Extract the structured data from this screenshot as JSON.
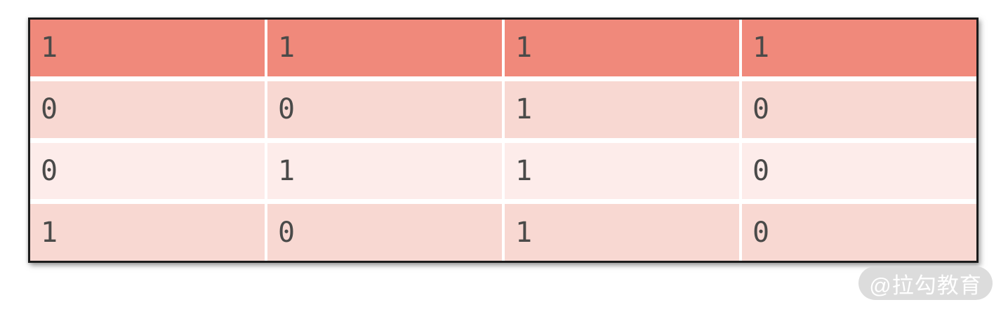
{
  "chart_data": {
    "type": "table",
    "header_row": [
      "1",
      "1",
      "1",
      "1"
    ],
    "rows": [
      [
        "0",
        "0",
        "1",
        "0"
      ],
      [
        "0",
        "1",
        "1",
        "0"
      ],
      [
        "1",
        "0",
        "1",
        "0"
      ]
    ],
    "matrix": [
      [
        1,
        1,
        1,
        1
      ],
      [
        0,
        0,
        1,
        0
      ],
      [
        0,
        1,
        1,
        0
      ],
      [
        1,
        0,
        1,
        0
      ]
    ],
    "title": "",
    "legend": "none",
    "grid": "white gridlines between cells"
  },
  "watermark": {
    "label": "@拉勾教育"
  },
  "colors": {
    "header_bg": "#f0897b",
    "row_a_bg": "#f8d8d2",
    "row_b_bg": "#fdecea",
    "cell_text": "#4a4a49",
    "table_border": "#1b1b1b",
    "grid_line": "#ffffff",
    "watermark_bg": "#dcdcdc",
    "watermark_text": "#ffffff"
  }
}
